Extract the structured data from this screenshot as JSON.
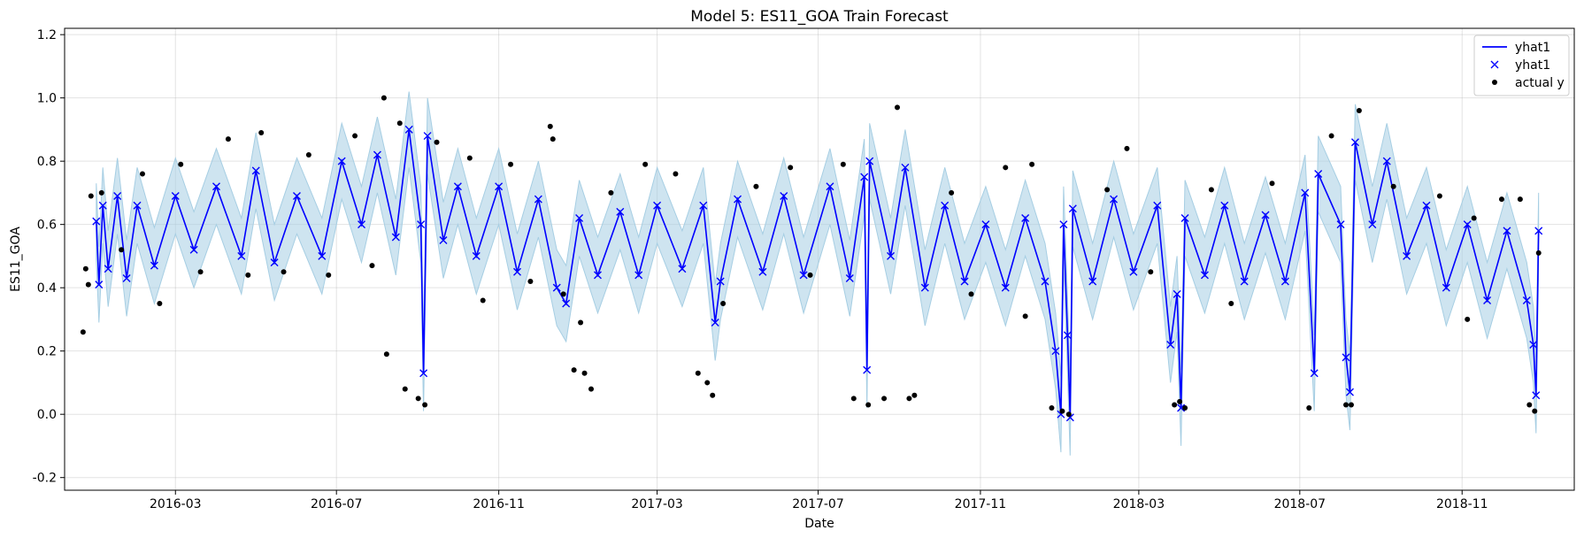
{
  "chart_data": {
    "type": "line",
    "title": "Model 5: ES11_GOA Train Forecast",
    "xlabel": "Date",
    "ylabel": "ES11_GOA",
    "x_range": [
      "2015-12-08",
      "2019-01-25"
    ],
    "ylim": [
      -0.24,
      1.22
    ],
    "x_ticks": [
      "2016-03",
      "2016-07",
      "2016-11",
      "2017-03",
      "2017-07",
      "2017-11",
      "2018-03",
      "2018-07",
      "2018-11"
    ],
    "y_ticks": [
      -0.2,
      0.0,
      0.2,
      0.4,
      0.6,
      0.8,
      1.0,
      1.2
    ],
    "grid": true,
    "legend_position": "top-right",
    "legend": [
      {
        "label": "yhat1",
        "marker": "line",
        "color": "#0000ff"
      },
      {
        "label": "yhat1",
        "marker": "x",
        "color": "#0000ff"
      },
      {
        "label": "actual y",
        "marker": "dot",
        "color": "#000000"
      }
    ],
    "band_color": "#a6cee3",
    "series": [
      {
        "name": "yhat1",
        "color": "#0000ff",
        "points": [
          [
            "2016-01-01",
            0.61
          ],
          [
            "2016-01-03",
            0.41
          ],
          [
            "2016-01-06",
            0.66
          ],
          [
            "2016-01-10",
            0.46
          ],
          [
            "2016-01-17",
            0.69
          ],
          [
            "2016-01-24",
            0.43
          ],
          [
            "2016-02-01",
            0.66
          ],
          [
            "2016-02-14",
            0.47
          ],
          [
            "2016-03-01",
            0.69
          ],
          [
            "2016-03-15",
            0.52
          ],
          [
            "2016-04-01",
            0.72
          ],
          [
            "2016-04-20",
            0.5
          ],
          [
            "2016-05-01",
            0.77
          ],
          [
            "2016-05-15",
            0.48
          ],
          [
            "2016-06-01",
            0.69
          ],
          [
            "2016-06-20",
            0.5
          ],
          [
            "2016-07-05",
            0.8
          ],
          [
            "2016-07-20",
            0.6
          ],
          [
            "2016-08-01",
            0.82
          ],
          [
            "2016-08-15",
            0.56
          ],
          [
            "2016-08-25",
            0.9
          ],
          [
            "2016-09-03",
            0.6
          ],
          [
            "2016-09-05",
            0.13
          ],
          [
            "2016-09-08",
            0.88
          ],
          [
            "2016-09-20",
            0.55
          ],
          [
            "2016-10-01",
            0.72
          ],
          [
            "2016-10-15",
            0.5
          ],
          [
            "2016-11-01",
            0.72
          ],
          [
            "2016-11-15",
            0.45
          ],
          [
            "2016-12-01",
            0.68
          ],
          [
            "2016-12-15",
            0.4
          ],
          [
            "2016-12-22",
            0.35
          ],
          [
            "2017-01-01",
            0.62
          ],
          [
            "2017-01-15",
            0.44
          ],
          [
            "2017-02-01",
            0.64
          ],
          [
            "2017-02-15",
            0.44
          ],
          [
            "2017-03-01",
            0.66
          ],
          [
            "2017-03-20",
            0.46
          ],
          [
            "2017-04-05",
            0.66
          ],
          [
            "2017-04-14",
            0.29
          ],
          [
            "2017-04-18",
            0.42
          ],
          [
            "2017-05-01",
            0.68
          ],
          [
            "2017-05-20",
            0.45
          ],
          [
            "2017-06-05",
            0.69
          ],
          [
            "2017-06-20",
            0.44
          ],
          [
            "2017-07-10",
            0.72
          ],
          [
            "2017-07-25",
            0.43
          ],
          [
            "2017-08-05",
            0.75
          ],
          [
            "2017-08-07",
            0.14
          ],
          [
            "2017-08-09",
            0.8
          ],
          [
            "2017-08-25",
            0.5
          ],
          [
            "2017-09-05",
            0.78
          ],
          [
            "2017-09-20",
            0.4
          ],
          [
            "2017-10-05",
            0.66
          ],
          [
            "2017-10-20",
            0.42
          ],
          [
            "2017-11-05",
            0.6
          ],
          [
            "2017-11-20",
            0.4
          ],
          [
            "2017-12-05",
            0.62
          ],
          [
            "2017-12-20",
            0.42
          ],
          [
            "2017-12-28",
            0.2
          ],
          [
            "2018-01-01",
            0.0
          ],
          [
            "2018-01-03",
            0.6
          ],
          [
            "2018-01-06",
            0.25
          ],
          [
            "2018-01-08",
            -0.01
          ],
          [
            "2018-01-10",
            0.65
          ],
          [
            "2018-01-25",
            0.42
          ],
          [
            "2018-02-10",
            0.68
          ],
          [
            "2018-02-25",
            0.45
          ],
          [
            "2018-03-15",
            0.66
          ],
          [
            "2018-03-25",
            0.22
          ],
          [
            "2018-03-30",
            0.38
          ],
          [
            "2018-04-02",
            0.02
          ],
          [
            "2018-04-05",
            0.62
          ],
          [
            "2018-04-20",
            0.44
          ],
          [
            "2018-05-05",
            0.66
          ],
          [
            "2018-05-20",
            0.42
          ],
          [
            "2018-06-05",
            0.63
          ],
          [
            "2018-06-20",
            0.42
          ],
          [
            "2018-07-05",
            0.7
          ],
          [
            "2018-07-12",
            0.13
          ],
          [
            "2018-07-15",
            0.76
          ],
          [
            "2018-08-01",
            0.6
          ],
          [
            "2018-08-05",
            0.18
          ],
          [
            "2018-08-08",
            0.07
          ],
          [
            "2018-08-12",
            0.86
          ],
          [
            "2018-08-25",
            0.6
          ],
          [
            "2018-09-05",
            0.8
          ],
          [
            "2018-09-20",
            0.5
          ],
          [
            "2018-10-05",
            0.66
          ],
          [
            "2018-10-20",
            0.4
          ],
          [
            "2018-11-05",
            0.6
          ],
          [
            "2018-11-20",
            0.36
          ],
          [
            "2018-12-05",
            0.58
          ],
          [
            "2018-12-20",
            0.36
          ],
          [
            "2018-12-25",
            0.22
          ],
          [
            "2018-12-27",
            0.06
          ],
          [
            "2018-12-29",
            0.58
          ]
        ]
      },
      {
        "name": "actual y",
        "color": "#000000",
        "points": [
          [
            "2015-12-22",
            0.26
          ],
          [
            "2015-12-24",
            0.46
          ],
          [
            "2015-12-26",
            0.41
          ],
          [
            "2015-12-28",
            0.69
          ],
          [
            "2016-01-05",
            0.7
          ],
          [
            "2016-01-20",
            0.52
          ],
          [
            "2016-02-05",
            0.76
          ],
          [
            "2016-02-18",
            0.35
          ],
          [
            "2016-03-05",
            0.79
          ],
          [
            "2016-03-20",
            0.45
          ],
          [
            "2016-04-10",
            0.87
          ],
          [
            "2016-04-25",
            0.44
          ],
          [
            "2016-05-05",
            0.89
          ],
          [
            "2016-05-22",
            0.45
          ],
          [
            "2016-06-10",
            0.82
          ],
          [
            "2016-06-25",
            0.44
          ],
          [
            "2016-07-15",
            0.88
          ],
          [
            "2016-07-28",
            0.47
          ],
          [
            "2016-08-06",
            1.0
          ],
          [
            "2016-08-08",
            0.19
          ],
          [
            "2016-08-18",
            0.92
          ],
          [
            "2016-08-22",
            0.08
          ],
          [
            "2016-09-01",
            0.05
          ],
          [
            "2016-09-06",
            0.03
          ],
          [
            "2016-09-15",
            0.86
          ],
          [
            "2016-10-10",
            0.81
          ],
          [
            "2016-10-20",
            0.36
          ],
          [
            "2016-11-10",
            0.79
          ],
          [
            "2016-11-25",
            0.42
          ],
          [
            "2016-12-10",
            0.91
          ],
          [
            "2016-12-12",
            0.87
          ],
          [
            "2016-12-20",
            0.38
          ],
          [
            "2016-12-28",
            0.14
          ],
          [
            "2017-01-02",
            0.29
          ],
          [
            "2017-01-05",
            0.13
          ],
          [
            "2017-01-10",
            0.08
          ],
          [
            "2017-01-25",
            0.7
          ],
          [
            "2017-02-20",
            0.79
          ],
          [
            "2017-03-15",
            0.76
          ],
          [
            "2017-04-01",
            0.13
          ],
          [
            "2017-04-08",
            0.1
          ],
          [
            "2017-04-12",
            0.06
          ],
          [
            "2017-04-20",
            0.35
          ],
          [
            "2017-05-15",
            0.72
          ],
          [
            "2017-06-10",
            0.78
          ],
          [
            "2017-06-25",
            0.44
          ],
          [
            "2017-07-20",
            0.79
          ],
          [
            "2017-07-28",
            0.05
          ],
          [
            "2017-08-08",
            0.03
          ],
          [
            "2017-08-20",
            0.05
          ],
          [
            "2017-08-30",
            0.97
          ],
          [
            "2017-09-08",
            0.05
          ],
          [
            "2017-09-12",
            0.06
          ],
          [
            "2017-10-10",
            0.7
          ],
          [
            "2017-10-25",
            0.38
          ],
          [
            "2017-11-20",
            0.78
          ],
          [
            "2017-12-05",
            0.31
          ],
          [
            "2017-12-10",
            0.79
          ],
          [
            "2017-12-25",
            0.02
          ],
          [
            "2018-01-02",
            0.01
          ],
          [
            "2018-01-07",
            0.0
          ],
          [
            "2018-02-05",
            0.71
          ],
          [
            "2018-02-20",
            0.84
          ],
          [
            "2018-03-10",
            0.45
          ],
          [
            "2018-03-28",
            0.03
          ],
          [
            "2018-04-01",
            0.04
          ],
          [
            "2018-04-05",
            0.02
          ],
          [
            "2018-04-25",
            0.71
          ],
          [
            "2018-05-10",
            0.35
          ],
          [
            "2018-06-10",
            0.73
          ],
          [
            "2018-07-08",
            0.02
          ],
          [
            "2018-07-25",
            0.88
          ],
          [
            "2018-08-05",
            0.03
          ],
          [
            "2018-08-09",
            0.03
          ],
          [
            "2018-08-15",
            0.96
          ],
          [
            "2018-09-10",
            0.72
          ],
          [
            "2018-10-15",
            0.69
          ],
          [
            "2018-11-05",
            0.3
          ],
          [
            "2018-11-10",
            0.62
          ],
          [
            "2018-12-01",
            0.68
          ],
          [
            "2018-12-15",
            0.68
          ],
          [
            "2018-12-22",
            0.03
          ],
          [
            "2018-12-26",
            0.01
          ],
          [
            "2018-12-29",
            0.51
          ]
        ]
      }
    ]
  }
}
